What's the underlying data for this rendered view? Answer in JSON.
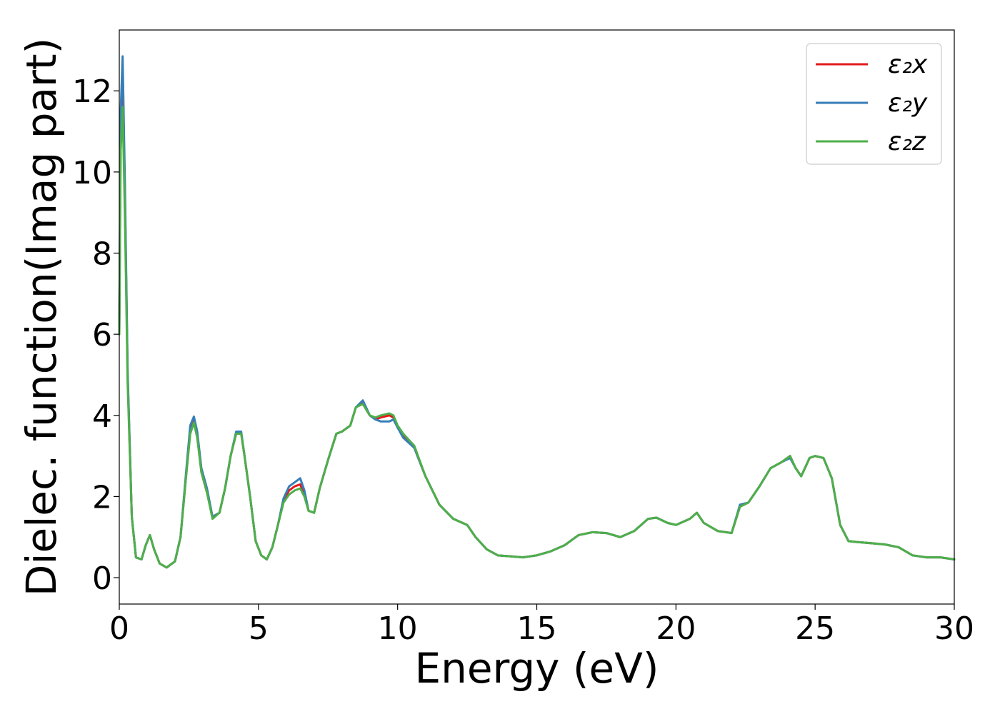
{
  "chart_data": {
    "type": "line",
    "xlabel": "Energy (eV)",
    "ylabel": "Dielec. function(Imag part)",
    "xlim": [
      0,
      30
    ],
    "ylim": [
      -0.65,
      13.5
    ],
    "xticks": [
      "0",
      "5",
      "10",
      "15",
      "20",
      "25",
      "30"
    ],
    "yticks": [
      "0",
      "2",
      "4",
      "6",
      "8",
      "10",
      "12"
    ],
    "grid": false,
    "legend_position": "top-right",
    "series": [
      {
        "name": "ε₂x",
        "color": "#e41a1c",
        "x": [
          0,
          0.05,
          0.12,
          0.2,
          0.3,
          0.45,
          0.6,
          0.8,
          0.95,
          1.1,
          1.25,
          1.45,
          1.7,
          2.0,
          2.2,
          2.4,
          2.55,
          2.68,
          2.8,
          2.95,
          3.15,
          3.35,
          3.6,
          3.8,
          4.0,
          4.2,
          4.38,
          4.5,
          4.7,
          4.9,
          5.1,
          5.3,
          5.5,
          5.7,
          5.9,
          6.1,
          6.3,
          6.5,
          6.65,
          6.8,
          7.0,
          7.2,
          7.5,
          7.8,
          8.0,
          8.3,
          8.5,
          8.75,
          9.0,
          9.2,
          9.4,
          9.7,
          9.85,
          10.0,
          10.2,
          10.6,
          11.0,
          11.5,
          12.0,
          12.5,
          12.8,
          13.2,
          13.6,
          14.0,
          14.5,
          15.0,
          15.5,
          16.0,
          16.5,
          17.0,
          17.5,
          18.0,
          18.5,
          19.0,
          19.3,
          19.7,
          20.0,
          20.5,
          20.75,
          21.0,
          21.5,
          22.0,
          22.3,
          22.6,
          23.0,
          23.4,
          23.8,
          24.1,
          24.3,
          24.5,
          24.8,
          25.0,
          25.3,
          25.6,
          25.9,
          26.2,
          26.5,
          27.0,
          27.5,
          28.0,
          28.5,
          29.0,
          29.5,
          30.0
        ],
        "y": [
          6.0,
          11.0,
          12.5,
          9.5,
          5.0,
          1.5,
          0.5,
          0.45,
          0.8,
          1.05,
          0.7,
          0.35,
          0.25,
          0.4,
          1.0,
          2.5,
          3.6,
          3.88,
          3.5,
          2.6,
          2.1,
          1.5,
          1.6,
          2.2,
          3.0,
          3.55,
          3.55,
          3.0,
          2.0,
          0.9,
          0.55,
          0.45,
          0.75,
          1.3,
          1.9,
          2.15,
          2.25,
          2.3,
          2.05,
          1.65,
          1.6,
          2.2,
          2.9,
          3.55,
          3.6,
          3.75,
          4.2,
          4.3,
          4.0,
          3.9,
          3.95,
          4.0,
          3.95,
          3.7,
          3.5,
          3.2,
          2.5,
          1.8,
          1.45,
          1.3,
          1.0,
          0.7,
          0.55,
          0.53,
          0.5,
          0.55,
          0.65,
          0.8,
          1.05,
          1.12,
          1.1,
          1.0,
          1.15,
          1.45,
          1.48,
          1.35,
          1.3,
          1.45,
          1.6,
          1.35,
          1.15,
          1.1,
          1.75,
          1.85,
          2.25,
          2.7,
          2.85,
          3.0,
          2.7,
          2.5,
          2.95,
          3.0,
          2.95,
          2.45,
          1.3,
          0.9,
          0.88,
          0.85,
          0.82,
          0.75,
          0.55,
          0.5,
          0.5,
          0.45
        ]
      },
      {
        "name": "ε₂y",
        "color": "#377eb8",
        "x": [
          0,
          0.05,
          0.12,
          0.2,
          0.3,
          0.45,
          0.6,
          0.8,
          0.95,
          1.1,
          1.25,
          1.45,
          1.7,
          2.0,
          2.2,
          2.4,
          2.55,
          2.68,
          2.8,
          2.95,
          3.15,
          3.35,
          3.6,
          3.8,
          4.0,
          4.2,
          4.38,
          4.5,
          4.7,
          4.9,
          5.1,
          5.3,
          5.5,
          5.7,
          5.9,
          6.1,
          6.3,
          6.5,
          6.65,
          6.8,
          7.0,
          7.2,
          7.5,
          7.8,
          8.0,
          8.3,
          8.5,
          8.75,
          9.0,
          9.2,
          9.4,
          9.7,
          9.85,
          10.0,
          10.2,
          10.6,
          11.0,
          11.5,
          12.0,
          12.5,
          12.8,
          13.2,
          13.6,
          14.0,
          14.5,
          15.0,
          15.5,
          16.0,
          16.5,
          17.0,
          17.5,
          18.0,
          18.5,
          19.0,
          19.3,
          19.7,
          20.0,
          20.5,
          20.75,
          21.0,
          21.5,
          22.0,
          22.3,
          22.6,
          23.0,
          23.4,
          23.8,
          24.1,
          24.3,
          24.5,
          24.8,
          25.0,
          25.3,
          25.6,
          25.9,
          26.2,
          26.5,
          27.0,
          27.5,
          28.0,
          28.5,
          29.0,
          29.5,
          30.0
        ],
        "y": [
          6.0,
          11.5,
          12.85,
          9.8,
          5.1,
          1.5,
          0.5,
          0.45,
          0.8,
          1.05,
          0.7,
          0.35,
          0.25,
          0.4,
          1.0,
          2.6,
          3.75,
          3.97,
          3.6,
          2.7,
          2.2,
          1.5,
          1.6,
          2.2,
          3.0,
          3.6,
          3.6,
          3.0,
          2.0,
          0.9,
          0.55,
          0.45,
          0.75,
          1.3,
          1.95,
          2.25,
          2.35,
          2.45,
          2.15,
          1.65,
          1.6,
          2.2,
          2.9,
          3.55,
          3.6,
          3.75,
          4.2,
          4.37,
          4.0,
          3.9,
          3.85,
          3.85,
          3.9,
          3.7,
          3.45,
          3.2,
          2.5,
          1.8,
          1.45,
          1.3,
          1.0,
          0.7,
          0.55,
          0.53,
          0.5,
          0.55,
          0.65,
          0.8,
          1.05,
          1.12,
          1.1,
          1.0,
          1.15,
          1.45,
          1.48,
          1.35,
          1.3,
          1.45,
          1.6,
          1.35,
          1.15,
          1.1,
          1.8,
          1.85,
          2.25,
          2.7,
          2.85,
          2.95,
          2.7,
          2.5,
          2.95,
          3.0,
          2.95,
          2.45,
          1.3,
          0.9,
          0.88,
          0.85,
          0.82,
          0.75,
          0.55,
          0.5,
          0.5,
          0.45
        ]
      },
      {
        "name": "ε₂z",
        "color": "#4daf4a",
        "x": [
          0,
          0.05,
          0.12,
          0.2,
          0.3,
          0.45,
          0.6,
          0.8,
          0.95,
          1.1,
          1.25,
          1.45,
          1.7,
          2.0,
          2.2,
          2.4,
          2.55,
          2.68,
          2.8,
          2.95,
          3.15,
          3.35,
          3.6,
          3.8,
          4.0,
          4.2,
          4.38,
          4.5,
          4.7,
          4.9,
          5.1,
          5.3,
          5.5,
          5.7,
          5.9,
          6.1,
          6.3,
          6.5,
          6.65,
          6.8,
          7.0,
          7.2,
          7.5,
          7.8,
          8.0,
          8.3,
          8.5,
          8.75,
          9.0,
          9.2,
          9.4,
          9.7,
          9.85,
          10.0,
          10.2,
          10.6,
          11.0,
          11.5,
          12.0,
          12.5,
          12.8,
          13.2,
          13.6,
          14.0,
          14.5,
          15.0,
          15.5,
          16.0,
          16.5,
          17.0,
          17.5,
          18.0,
          18.5,
          19.0,
          19.3,
          19.7,
          20.0,
          20.5,
          20.75,
          21.0,
          21.5,
          22.0,
          22.3,
          22.6,
          23.0,
          23.4,
          23.8,
          24.1,
          24.3,
          24.5,
          24.8,
          25.0,
          25.3,
          25.6,
          25.9,
          26.2,
          26.5,
          27.0,
          27.5,
          28.0,
          28.5,
          29.0,
          29.5,
          30.0
        ],
        "y": [
          6.0,
          10.5,
          11.6,
          9.0,
          4.8,
          1.5,
          0.5,
          0.45,
          0.8,
          1.05,
          0.7,
          0.35,
          0.25,
          0.4,
          1.0,
          2.5,
          3.55,
          3.82,
          3.45,
          2.6,
          2.1,
          1.45,
          1.6,
          2.2,
          3.0,
          3.55,
          3.55,
          3.0,
          2.0,
          0.9,
          0.55,
          0.45,
          0.75,
          1.3,
          1.85,
          2.05,
          2.15,
          2.2,
          2.0,
          1.65,
          1.6,
          2.2,
          2.9,
          3.55,
          3.6,
          3.75,
          4.2,
          4.28,
          4.0,
          3.95,
          4.0,
          4.05,
          4.0,
          3.75,
          3.55,
          3.25,
          2.5,
          1.8,
          1.45,
          1.3,
          1.0,
          0.7,
          0.55,
          0.53,
          0.5,
          0.55,
          0.65,
          0.8,
          1.05,
          1.12,
          1.1,
          1.0,
          1.15,
          1.45,
          1.48,
          1.35,
          1.3,
          1.45,
          1.6,
          1.35,
          1.15,
          1.1,
          1.75,
          1.85,
          2.25,
          2.7,
          2.85,
          3.0,
          2.7,
          2.5,
          2.95,
          3.0,
          2.95,
          2.45,
          1.3,
          0.9,
          0.88,
          0.85,
          0.82,
          0.75,
          0.55,
          0.5,
          0.5,
          0.45
        ]
      }
    ]
  }
}
